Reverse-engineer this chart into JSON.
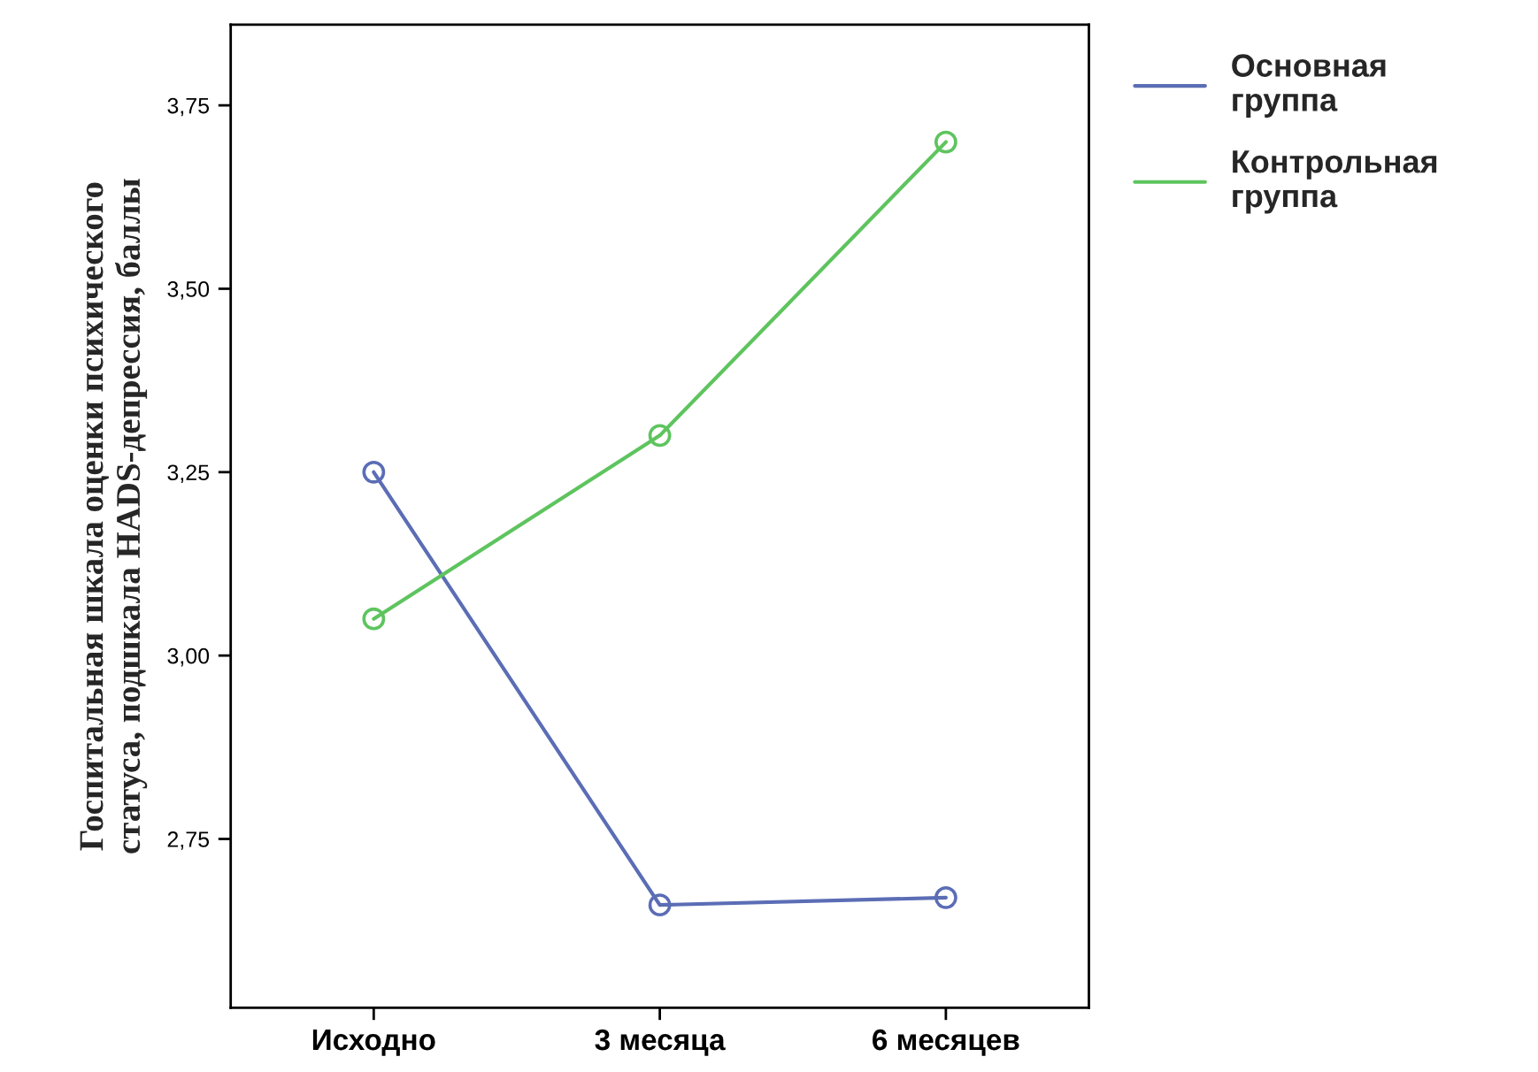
{
  "chart_data": {
    "type": "line",
    "ylabel": "Госпитальная шкала оценки психического\nстатуса, подшкала HADS-депрессия, баллы",
    "categories": [
      "Исходно",
      "3 месяца",
      "6 месяцев"
    ],
    "series": [
      {
        "name": "Основная\nгруппа",
        "color": "#5b6db5",
        "values": [
          3.25,
          2.66,
          2.67
        ]
      },
      {
        "name": "Контрольная\nгруппа",
        "color": "#5ec45e",
        "values": [
          3.05,
          3.3,
          3.7
        ]
      }
    ],
    "ylim": [
      2.52,
      3.86
    ],
    "yticks": [
      {
        "value": 2.75,
        "label": "2,75"
      },
      {
        "value": 3.0,
        "label": "3,00"
      },
      {
        "value": 3.25,
        "label": "3,25"
      },
      {
        "value": 3.5,
        "label": "3,50"
      },
      {
        "value": 3.75,
        "label": "3,75"
      }
    ],
    "marker": "circle",
    "line_style": "solid",
    "grid": false,
    "legend": "top right"
  }
}
